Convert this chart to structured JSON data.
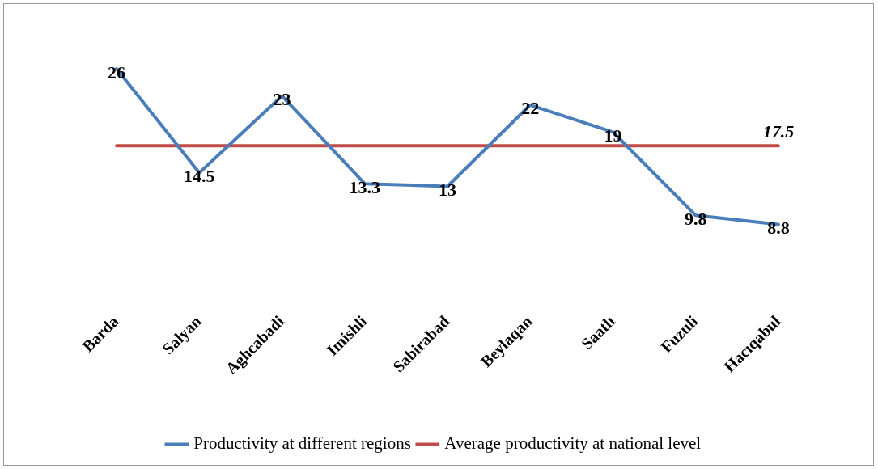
{
  "chart_data": {
    "type": "line",
    "categories": [
      "Barda",
      "Salyan",
      "Aghcabadi",
      "Imishli",
      "Sabirabad",
      "Beylaqan",
      "Saatlı",
      "Fuzuli",
      "Hacıqabul"
    ],
    "series": [
      {
        "name": "Productivity at different regions",
        "color": "#4a7ebb",
        "values": [
          26,
          14.5,
          23,
          13.3,
          13,
          22,
          19,
          9.8,
          8.8
        ],
        "value_labels": [
          "26",
          "14.5",
          "23",
          "13.3",
          "13",
          "22",
          "19",
          "9.8",
          "8.8"
        ]
      },
      {
        "name": "Average productivity at national level",
        "color": "#be4b48",
        "values": [
          17.5,
          17.5,
          17.5,
          17.5,
          17.5,
          17.5,
          17.5,
          17.5,
          17.5
        ],
        "value_labels": [
          null,
          null,
          null,
          null,
          null,
          null,
          null,
          null,
          "17.5"
        ]
      }
    ],
    "tick_labels": "x",
    "grid": false,
    "legend": "bottom",
    "marker": "none",
    "line_style": "solid"
  }
}
